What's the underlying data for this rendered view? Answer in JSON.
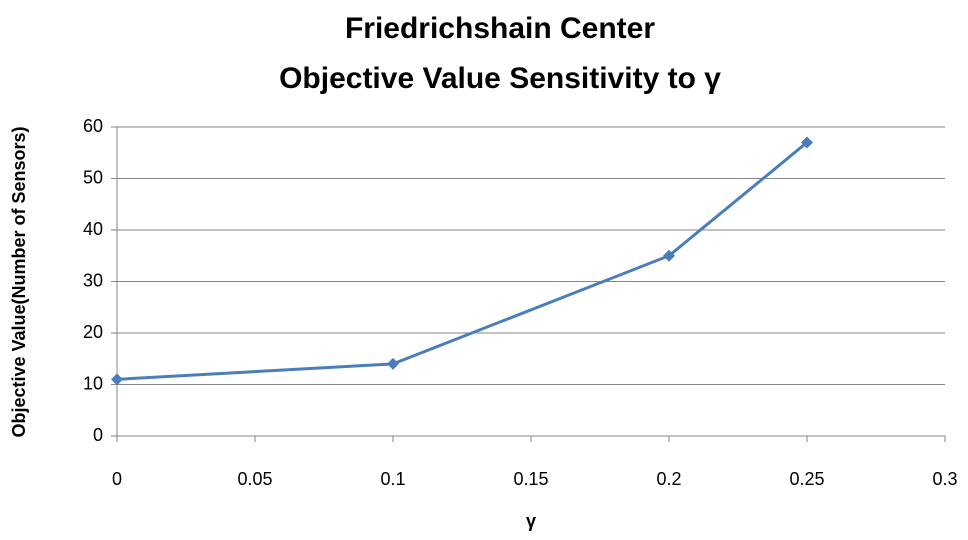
{
  "chart_data": {
    "type": "line",
    "title": "Friedrichshain Center",
    "subtitle": "Objective Value Sensitivity to γ",
    "x_label": "γ",
    "y_label": "Objective Value(Number of Sensors)",
    "x": [
      0,
      0.1,
      0.2,
      0.25
    ],
    "series": [
      {
        "name": "Objective Value",
        "color": "#4a7ebb",
        "values": [
          11,
          14,
          35,
          57
        ]
      }
    ],
    "xlim": [
      0,
      0.3
    ],
    "xticks": [
      0,
      0.05,
      0.1,
      0.15,
      0.2,
      0.25,
      0.3
    ],
    "ylim": [
      0,
      60
    ],
    "yticks": [
      0,
      10,
      20,
      30,
      40,
      50,
      60
    ],
    "grid": true
  }
}
